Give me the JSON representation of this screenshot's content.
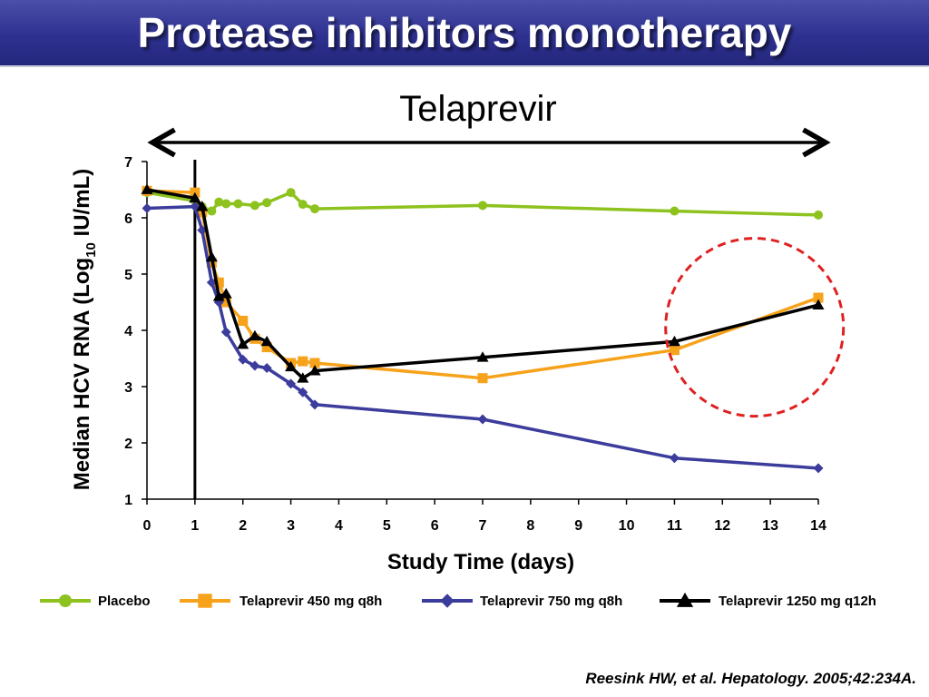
{
  "slide": {
    "title": "Protease inhibitors monotherapy",
    "subtitle": "Telaprevir",
    "citation": "Reesink HW, et al. Hepatology. 2005;42:234A."
  },
  "chart_data": {
    "type": "line",
    "xlabel": "Study Time (days)",
    "ylabel": {
      "prefix": "Median HCV RNA (Log",
      "subscript": "10",
      "suffix": " IU/mL)"
    },
    "xlim": [
      0,
      14
    ],
    "ylim": [
      1,
      7
    ],
    "xticks": [
      0,
      1,
      2,
      3,
      4,
      5,
      6,
      7,
      8,
      9,
      10,
      11,
      12,
      13,
      14
    ],
    "yticks": [
      1,
      2,
      3,
      4,
      5,
      6,
      7
    ],
    "grid": false,
    "legend_position": "bottom",
    "annotations": {
      "vertical_line_x": 1,
      "double_arrow_x": [
        0,
        14
      ],
      "highlight_circle": {
        "x": 12.5,
        "y": 4.2,
        "color": "#e02020"
      }
    },
    "series": [
      {
        "name": "Placebo",
        "color": "#8dc21f",
        "marker": "circle",
        "x": [
          0,
          1,
          1.15,
          1.35,
          1.5,
          1.65,
          1.9,
          2.25,
          2.5,
          3.0,
          3.25,
          3.5,
          7,
          11,
          14
        ],
        "y": [
          6.45,
          6.3,
          6.2,
          6.12,
          6.28,
          6.25,
          6.25,
          6.22,
          6.27,
          6.45,
          6.24,
          6.16,
          6.22,
          6.12,
          6.05
        ]
      },
      {
        "name": "Telaprevir 450 mg q8h",
        "color": "#f7a21b",
        "marker": "square",
        "x": [
          0,
          1,
          1.15,
          1.35,
          1.5,
          1.65,
          2.0,
          2.25,
          2.5,
          3.0,
          3.25,
          3.5,
          7,
          11,
          14
        ],
        "y": [
          6.48,
          6.45,
          6.1,
          5.2,
          4.85,
          4.5,
          4.17,
          3.85,
          3.7,
          3.42,
          3.45,
          3.42,
          3.15,
          3.65,
          4.58
        ]
      },
      {
        "name": "Telaprevir 750 mg q8h",
        "color": "#3c3c9c",
        "marker": "diamond",
        "x": [
          0,
          1,
          1.15,
          1.35,
          1.5,
          1.65,
          2.0,
          2.25,
          2.5,
          3.0,
          3.25,
          3.5,
          7,
          11,
          14
        ],
        "y": [
          6.17,
          6.2,
          5.78,
          4.85,
          4.5,
          3.97,
          3.48,
          3.37,
          3.33,
          3.05,
          2.9,
          2.68,
          2.42,
          1.73,
          1.55
        ]
      },
      {
        "name": "Telaprevir 1250 mg q12h",
        "color": "#000000",
        "marker": "triangle",
        "x": [
          0,
          1,
          1.15,
          1.35,
          1.5,
          1.65,
          2.0,
          2.25,
          2.5,
          3.0,
          3.25,
          3.5,
          7,
          11,
          14
        ],
        "y": [
          6.5,
          6.35,
          6.2,
          5.3,
          4.6,
          4.65,
          3.75,
          3.9,
          3.8,
          3.35,
          3.15,
          3.28,
          3.52,
          3.8,
          4.45
        ]
      }
    ]
  }
}
